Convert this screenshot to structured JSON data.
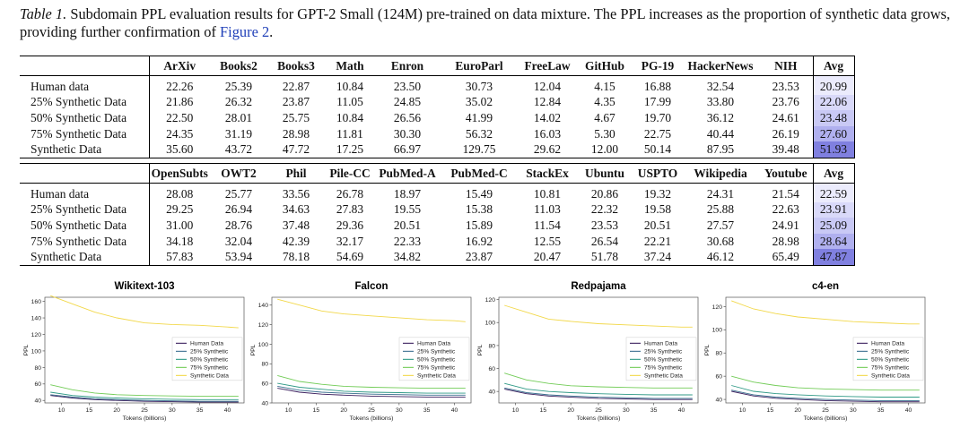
{
  "caption": {
    "label": "Table 1.",
    "text": "Subdomain PPL evaluation results for GPT-2 Small (124M) pre-trained on data mixture. The PPL increases as the proportion of synthetic data grows, providing further confirmation of",
    "figure_ref": "Figure 2",
    "end": "."
  },
  "tables": [
    {
      "columns": [
        "ArXiv",
        "Books2",
        "Books3",
        "Math",
        "Enron",
        "EuroParl",
        "FreeLaw",
        "GitHub",
        "PG-19",
        "HackerNews",
        "NIH",
        "Avg"
      ],
      "rows": [
        {
          "label": "Human data",
          "values": [
            "22.26",
            "25.39",
            "22.87",
            "10.84",
            "23.50",
            "30.73",
            "12.04",
            "4.15",
            "16.88",
            "32.54",
            "23.53",
            "20.99"
          ]
        },
        {
          "label": "25% Synthetic Data",
          "values": [
            "21.86",
            "26.32",
            "23.87",
            "11.05",
            "24.85",
            "35.02",
            "12.84",
            "4.35",
            "17.99",
            "33.80",
            "23.76",
            "22.06"
          ]
        },
        {
          "label": "50% Synthetic Data",
          "values": [
            "22.50",
            "28.01",
            "25.75",
            "10.84",
            "26.56",
            "41.99",
            "14.02",
            "4.67",
            "19.70",
            "36.12",
            "24.61",
            "23.48"
          ]
        },
        {
          "label": "75% Synthetic Data",
          "values": [
            "24.35",
            "31.19",
            "28.98",
            "11.81",
            "30.30",
            "56.32",
            "16.03",
            "5.30",
            "22.75",
            "40.44",
            "26.19",
            "27.60"
          ]
        },
        {
          "label": "Synthetic Data",
          "values": [
            "35.60",
            "43.72",
            "47.72",
            "17.25",
            "66.97",
            "129.75",
            "29.62",
            "12.00",
            "50.14",
            "87.95",
            "39.48",
            "51.93"
          ]
        }
      ]
    },
    {
      "columns": [
        "OpenSubts",
        "OWT2",
        "Phil",
        "Pile-CC",
        "PubMed-A",
        "PubMed-C",
        "StackEx",
        "Ubuntu",
        "USPTO",
        "Wikipedia",
        "Youtube",
        "Avg"
      ],
      "rows": [
        {
          "label": "Human data",
          "values": [
            "28.08",
            "25.77",
            "33.56",
            "26.78",
            "18.97",
            "15.49",
            "10.81",
            "20.86",
            "19.32",
            "24.31",
            "21.54",
            "22.59"
          ]
        },
        {
          "label": "25% Synthetic Data",
          "values": [
            "29.25",
            "26.94",
            "34.63",
            "27.83",
            "19.55",
            "15.38",
            "11.03",
            "22.32",
            "19.58",
            "25.88",
            "22.63",
            "23.91"
          ]
        },
        {
          "label": "50% Synthetic Data",
          "values": [
            "31.00",
            "28.76",
            "37.48",
            "29.36",
            "20.51",
            "15.89",
            "11.54",
            "23.53",
            "20.51",
            "27.57",
            "24.91",
            "25.09"
          ]
        },
        {
          "label": "75% Synthetic Data",
          "values": [
            "34.18",
            "32.04",
            "42.39",
            "32.17",
            "22.33",
            "16.92",
            "12.55",
            "26.54",
            "22.21",
            "30.68",
            "28.98",
            "28.64"
          ]
        },
        {
          "label": "Synthetic Data",
          "values": [
            "57.83",
            "53.94",
            "78.18",
            "54.69",
            "34.82",
            "23.87",
            "20.47",
            "51.78",
            "37.24",
            "46.12",
            "65.49",
            "47.87"
          ]
        }
      ]
    }
  ],
  "avg_shading": [
    "#ebebfc",
    "#d9d9f9",
    "#c9c9f5",
    "#b0b0ef",
    "#8080e0"
  ],
  "legend": [
    "Human Data",
    "25% Synthetic",
    "50% Synthetic",
    "75% Synthetic",
    "Synthetic Data"
  ],
  "series_colors": [
    "#3b1f5e",
    "#3a6f8f",
    "#2f9a86",
    "#72cc57",
    "#f2d84a"
  ],
  "chart_data": [
    {
      "type": "line",
      "title": "Wikitext-103",
      "xlabel": "Tokens (billions)",
      "ylabel": "PPL",
      "xlim": [
        7,
        43
      ],
      "ylim": [
        37,
        165
      ],
      "x_ticks": [
        10,
        15,
        20,
        25,
        30,
        35,
        40
      ],
      "y_ticks": [
        40,
        60,
        80,
        100,
        120,
        140,
        160
      ],
      "x": [
        8,
        12,
        16,
        20,
        25,
        30,
        35,
        40,
        42
      ],
      "series": [
        {
          "name": "Human Data",
          "values": [
            46,
            43,
            41,
            40,
            39,
            38.5,
            38,
            38,
            38
          ]
        },
        {
          "name": "25% Synthetic",
          "values": [
            47,
            44,
            42,
            41,
            40,
            39.5,
            39,
            39,
            39
          ]
        },
        {
          "name": "50% Synthetic",
          "values": [
            50,
            46,
            44,
            43,
            42,
            41.5,
            41,
            41,
            41
          ]
        },
        {
          "name": "75% Synthetic",
          "values": [
            59,
            53,
            49,
            47,
            46,
            45.5,
            45,
            45,
            45
          ]
        },
        {
          "name": "Synthetic Data",
          "values": [
            167,
            157,
            147,
            140,
            134,
            132,
            131,
            129,
            128
          ]
        }
      ]
    },
    {
      "type": "line",
      "title": "Falcon",
      "xlabel": "Tokens (billions)",
      "ylabel": "PPL",
      "xlim": [
        7,
        43
      ],
      "ylim": [
        40,
        148
      ],
      "x_ticks": [
        10,
        15,
        20,
        25,
        30,
        35,
        40
      ],
      "y_ticks": [
        40,
        60,
        80,
        100,
        120,
        140
      ],
      "x": [
        8,
        12,
        16,
        20,
        25,
        30,
        35,
        40,
        42
      ],
      "series": [
        {
          "name": "Human Data",
          "values": [
            55,
            51,
            49,
            48,
            47,
            46.5,
            46,
            46,
            46
          ]
        },
        {
          "name": "25% Synthetic",
          "values": [
            57,
            53,
            51,
            50,
            49,
            48.5,
            48,
            48,
            48
          ]
        },
        {
          "name": "50% Synthetic",
          "values": [
            60,
            56,
            54,
            52,
            51,
            50.5,
            50,
            50,
            50
          ]
        },
        {
          "name": "75% Synthetic",
          "values": [
            68,
            62,
            59,
            57,
            56,
            55.5,
            55,
            55,
            55
          ]
        },
        {
          "name": "Synthetic Data",
          "values": [
            146,
            140,
            134,
            131,
            129,
            127,
            125,
            124,
            123
          ]
        }
      ]
    },
    {
      "type": "line",
      "title": "Redpajama",
      "xlabel": "Tokens (billions)",
      "ylabel": "PPL",
      "xlim": [
        7,
        43
      ],
      "ylim": [
        30,
        122
      ],
      "x_ticks": [
        10,
        15,
        20,
        25,
        30,
        35,
        40
      ],
      "y_ticks": [
        40,
        60,
        80,
        100,
        120
      ],
      "x": [
        8,
        12,
        16,
        20,
        25,
        30,
        35,
        40,
        42
      ],
      "series": [
        {
          "name": "Human Data",
          "values": [
            42,
            38,
            36,
            35,
            34,
            33.5,
            33,
            33,
            33
          ]
        },
        {
          "name": "25% Synthetic",
          "values": [
            43,
            39,
            37,
            36,
            35,
            34.5,
            34,
            34,
            34
          ]
        },
        {
          "name": "50% Synthetic",
          "values": [
            47,
            42,
            40,
            39,
            38,
            37.5,
            37,
            37,
            37
          ]
        },
        {
          "name": "75% Synthetic",
          "values": [
            56,
            50,
            47,
            45,
            44,
            43.5,
            43,
            43,
            43
          ]
        },
        {
          "name": "Synthetic Data",
          "values": [
            115,
            109,
            103,
            101,
            99,
            98,
            97,
            96,
            96
          ]
        }
      ]
    },
    {
      "type": "line",
      "title": "c4-en",
      "xlabel": "Tokens (billions)",
      "ylabel": "PPL",
      "xlim": [
        7,
        43
      ],
      "ylim": [
        37,
        128
      ],
      "x_ticks": [
        10,
        15,
        20,
        25,
        30,
        35,
        40
      ],
      "y_ticks": [
        40,
        60,
        80,
        100,
        120
      ],
      "x": [
        8,
        12,
        16,
        20,
        25,
        30,
        35,
        40,
        42
      ],
      "series": [
        {
          "name": "Human Data",
          "values": [
            47,
            43,
            41,
            40,
            39,
            38.5,
            38,
            38,
            38
          ]
        },
        {
          "name": "25% Synthetic",
          "values": [
            48,
            44,
            42,
            41,
            40,
            39.5,
            39,
            39,
            39
          ]
        },
        {
          "name": "50% Synthetic",
          "values": [
            52,
            47,
            45,
            44,
            43,
            42.5,
            42,
            42,
            42
          ]
        },
        {
          "name": "75% Synthetic",
          "values": [
            60,
            55,
            52,
            50,
            49,
            48.5,
            48,
            48,
            48
          ]
        },
        {
          "name": "Synthetic Data",
          "values": [
            125,
            118,
            114,
            111,
            109,
            107,
            106,
            105,
            105
          ]
        }
      ]
    }
  ]
}
